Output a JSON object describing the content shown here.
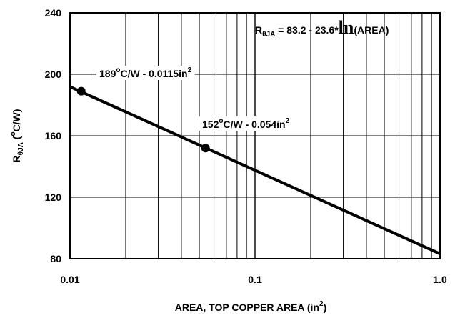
{
  "chart_data": {
    "type": "line",
    "x_scale": "log",
    "xlim": [
      0.01,
      1.0
    ],
    "ylim": [
      80,
      240
    ],
    "grid": true,
    "xticks": [
      "0.01",
      "0.1",
      "1.0"
    ],
    "yticks": [
      "80",
      "120",
      "160",
      "200",
      "240"
    ],
    "xlabel": {
      "main": "AREA, TOP COPPER AREA (in",
      "sup": "2",
      "tail": ")"
    },
    "ylabel": {
      "r": "R",
      "sub": "θJA",
      "open": " (",
      "sup": "o",
      "rest": "C/W)"
    },
    "equation": {
      "r": "R",
      "sub": "θJA",
      "mid": " = 83.2 - 23.6*",
      "ln": "ln",
      "tail": "(AREA)"
    },
    "series": [
      {
        "x": [
          0.01,
          0.0115,
          0.054,
          1.0
        ],
        "y": [
          191.9,
          188.6,
          152.1,
          83.2
        ],
        "color": "#000000"
      }
    ],
    "points": [
      {
        "x": 0.0115,
        "y": 189,
        "label_value": "189",
        "label_mid": "C/W - 0.0115in",
        "sup_o": "o",
        "sup_2": "2"
      },
      {
        "x": 0.054,
        "y": 152,
        "label_value": "152",
        "label_mid": "C/W - 0.054in",
        "sup_o": "o",
        "sup_2": "2"
      }
    ]
  }
}
